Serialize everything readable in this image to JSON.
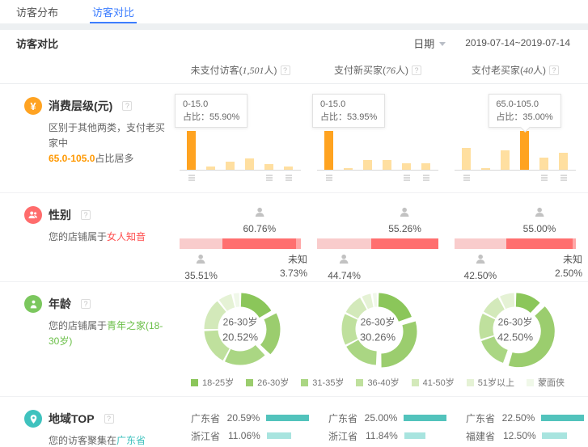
{
  "tabs": [
    {
      "label": "访客分布",
      "active": false
    },
    {
      "label": "访客对比",
      "active": true
    }
  ],
  "panel": {
    "title": "访客对比",
    "date_label": "日期",
    "date_range": "2019-07-14~2019-07-14"
  },
  "columns": [
    {
      "pre": "未支付访客(",
      "num": "1,501",
      "suf": "人)"
    },
    {
      "pre": "支付新买家(",
      "num": "76",
      "suf": "人)"
    },
    {
      "pre": "支付老买家(",
      "num": "40",
      "suf": "人)"
    }
  ],
  "sections": {
    "consume": {
      "title": "消费层级(元)",
      "desc_line1": "区别于其他两类，支付老买家中",
      "desc_highlight": "65.0-105.0",
      "desc_post": "占比居多"
    },
    "gender": {
      "title": "性别",
      "desc_pre": "您的店铺属于",
      "desc_highlight": "女人知音"
    },
    "age": {
      "title": "年龄",
      "desc_pre": "您的店铺属于",
      "desc_highlight": "青年之家(18-30岁)"
    },
    "region": {
      "title": "地域TOP",
      "desc_pre": "您的访客聚集在",
      "desc_highlight": "广东省"
    }
  },
  "chart_data": {
    "consume_bars": [
      {
        "type": "bar",
        "tooltip_line1": "0-15.0",
        "tooltip_line2": "占比：55.90%",
        "values": [
          55.9,
          4.5,
          12,
          16,
          8,
          5
        ],
        "highlight": 0,
        "tooltip_anchor": "left",
        "ticks": [
          0,
          4,
          5
        ]
      },
      {
        "type": "bar",
        "tooltip_line1": "0-15.0",
        "tooltip_line2": "占比：53.95%",
        "values": [
          53.95,
          2,
          14,
          14,
          8.5,
          8.5
        ],
        "highlight": 0,
        "tooltip_anchor": "left",
        "ticks": [
          0,
          4,
          5
        ]
      },
      {
        "type": "bar",
        "tooltip_line1": "65.0-105.0",
        "tooltip_line2": "占比：35.00%",
        "values": [
          20,
          1.5,
          17.5,
          35,
          11,
          15
        ],
        "highlight": 3,
        "tooltip_anchor": "bar",
        "ticks": [
          0,
          4,
          5
        ]
      }
    ],
    "gender_bars": [
      {
        "type": "stacked-bar",
        "male_pct": 35.51,
        "female_pct": 60.76,
        "unknown_pct": 3.73,
        "male_label": "35.51%",
        "female_label": "60.76%",
        "unknown_label": "未知",
        "unknown_value": "3.73%",
        "show_unknown": true
      },
      {
        "type": "stacked-bar",
        "male_pct": 44.74,
        "female_pct": 55.26,
        "unknown_pct": 0,
        "male_label": "44.74%",
        "female_label": "55.26%",
        "unknown_label": "",
        "unknown_value": "",
        "show_unknown": false
      },
      {
        "type": "stacked-bar",
        "male_pct": 42.5,
        "female_pct": 55.0,
        "unknown_pct": 2.5,
        "male_label": "42.50%",
        "female_label": "55.00%",
        "unknown_label": "未知",
        "unknown_value": "2.50%",
        "show_unknown": true
      }
    ],
    "age_donuts": [
      {
        "type": "donut",
        "center_label": "26-30岁",
        "center_value": "20.52%",
        "values": [
          17,
          20.52,
          20,
          17,
          15,
          7,
          3.5
        ],
        "explode": 1
      },
      {
        "type": "donut",
        "center_label": "26-30岁",
        "center_value": "30.26%",
        "values": [
          20,
          30.26,
          17,
          15,
          10,
          5,
          2.7
        ],
        "explode": 1
      },
      {
        "type": "donut",
        "center_label": "26-30岁",
        "center_value": "42.50%",
        "values": [
          12.5,
          42.5,
          15,
          12.5,
          10,
          7.5
        ],
        "explode": 1
      }
    ],
    "age_legend": [
      {
        "label": "18-25岁",
        "color": "#8bc65a"
      },
      {
        "label": "26-30岁",
        "color": "#9bcd6e"
      },
      {
        "label": "31-35岁",
        "color": "#aad683"
      },
      {
        "label": "36-40岁",
        "color": "#bfe09d"
      },
      {
        "label": "41-50岁",
        "color": "#d3e9ba"
      },
      {
        "label": "51岁以上",
        "color": "#e5f2d5"
      },
      {
        "label": "蒙面侠",
        "color": "#f0f8e9"
      }
    ],
    "region_lists": [
      {
        "type": "table",
        "rows": [
          {
            "name": "广东省",
            "pct": "20.59%",
            "value": 20.59
          },
          {
            "name": "浙江省",
            "pct": "11.06%",
            "value": 11.06
          },
          {
            "name": "",
            "pct": "",
            "value": 9
          }
        ]
      },
      {
        "type": "table",
        "rows": [
          {
            "name": "广东省",
            "pct": "25.00%",
            "value": 25.0
          },
          {
            "name": "浙江省",
            "pct": "11.84%",
            "value": 11.84
          },
          {
            "name": "",
            "pct": "",
            "value": 9
          }
        ]
      },
      {
        "type": "table",
        "rows": [
          {
            "name": "广东省",
            "pct": "22.50%",
            "value": 22.5
          },
          {
            "name": "福建省",
            "pct": "12.50%",
            "value": 12.5
          },
          {
            "name": "",
            "pct": "",
            "value": 9
          }
        ]
      }
    ],
    "colors": {
      "accent_blue": "#3d7eff",
      "bar_highlight": "#ffa320",
      "bar_normal": "#ffdfa0",
      "female": "#ff6f6f",
      "male": "#f9cccc",
      "unknown": "#ffa8a8",
      "person_icon": "#c2c2c2",
      "region_bar_colors": [
        "#52c3bc",
        "#a8e4df",
        "#cdf0ec"
      ],
      "donut_palette": [
        "#8bc65a",
        "#9bcd6e",
        "#aad683",
        "#bfe09d",
        "#d3e9ba",
        "#e5f2d5",
        "#f0f8e9"
      ]
    }
  }
}
